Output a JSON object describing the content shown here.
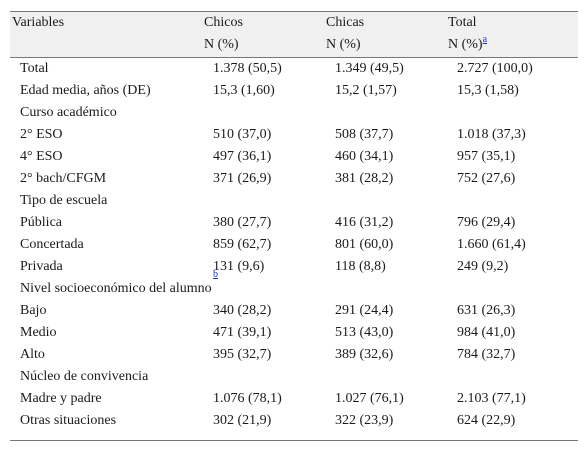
{
  "header": {
    "col0": "Variables",
    "col1_top": "Chicos",
    "col1_sub": "N (%)",
    "col2_top": "Chicas",
    "col2_sub": "N (%)",
    "col3_top": "Total",
    "col3_sub": "N (%)",
    "col3_note": "a"
  },
  "rows": [
    {
      "label": "Total",
      "chicos": "1.378 (50,5)",
      "chicas": "1.349 (49,5)",
      "total": "2.727 (100,0)"
    },
    {
      "label": "Edad media, años (DE)",
      "chicos": "15,3 (1,60)",
      "chicas": "15,2 (1,57)",
      "total": "15,3 (1,58)"
    },
    {
      "label": "Curso académico",
      "chicos": "",
      "chicas": "",
      "total": ""
    },
    {
      "label": "2° ESO",
      "chicos": "510 (37,0)",
      "chicas": "508 (37,7)",
      "total": "1.018 (37,3)"
    },
    {
      "label": "4° ESO",
      "chicos": "497 (36,1)",
      "chicas": "460 (34,1)",
      "total": "957 (35,1)"
    },
    {
      "label": "2° bach/CFGM",
      "chicos": "371 (26,9)",
      "chicas": "381 (28,2)",
      "total": "752 (27,6)"
    },
    {
      "label": "Tipo de escuela",
      "chicos": "",
      "chicas": "",
      "total": ""
    },
    {
      "label": "Pública",
      "chicos": "380 (27,7)",
      "chicas": "416 (31,2)",
      "total": "796 (29,4)"
    },
    {
      "label": "Concertada",
      "chicos": "859 (62,7)",
      "chicas": "801 (60,0)",
      "total": "1.660 (61,4)"
    },
    {
      "label": "Privada",
      "chicos": "131 (9,6)",
      "chicas": "118 (8,8)",
      "total": "249 (9,2)"
    },
    {
      "label": "Nivel socioeconómico del alumno",
      "note": "b",
      "chicos": "",
      "chicas": "",
      "total": ""
    },
    {
      "label": "Bajo",
      "chicos": "340 (28,2)",
      "chicas": "291 (24,4)",
      "total": "631 (26,3)"
    },
    {
      "label": "Medio",
      "chicos": "471 (39,1)",
      "chicas": "513 (43,0)",
      "total": "984 (41,0)"
    },
    {
      "label": "Alto",
      "chicos": "395 (32,7)",
      "chicas": "389 (32,6)",
      "total": "784 (32,7)"
    },
    {
      "label": "Núcleo de convivencia",
      "chicos": "",
      "chicas": "",
      "total": ""
    },
    {
      "label": "Madre y padre",
      "chicos": "1.076 (78,1)",
      "chicas": "1.027 (76,1)",
      "total": "2.103 (77,1)"
    },
    {
      "label": "Otras situaciones",
      "chicos": "302 (21,9)",
      "chicas": "322 (23,9)",
      "total": "624 (22,9)"
    }
  ]
}
